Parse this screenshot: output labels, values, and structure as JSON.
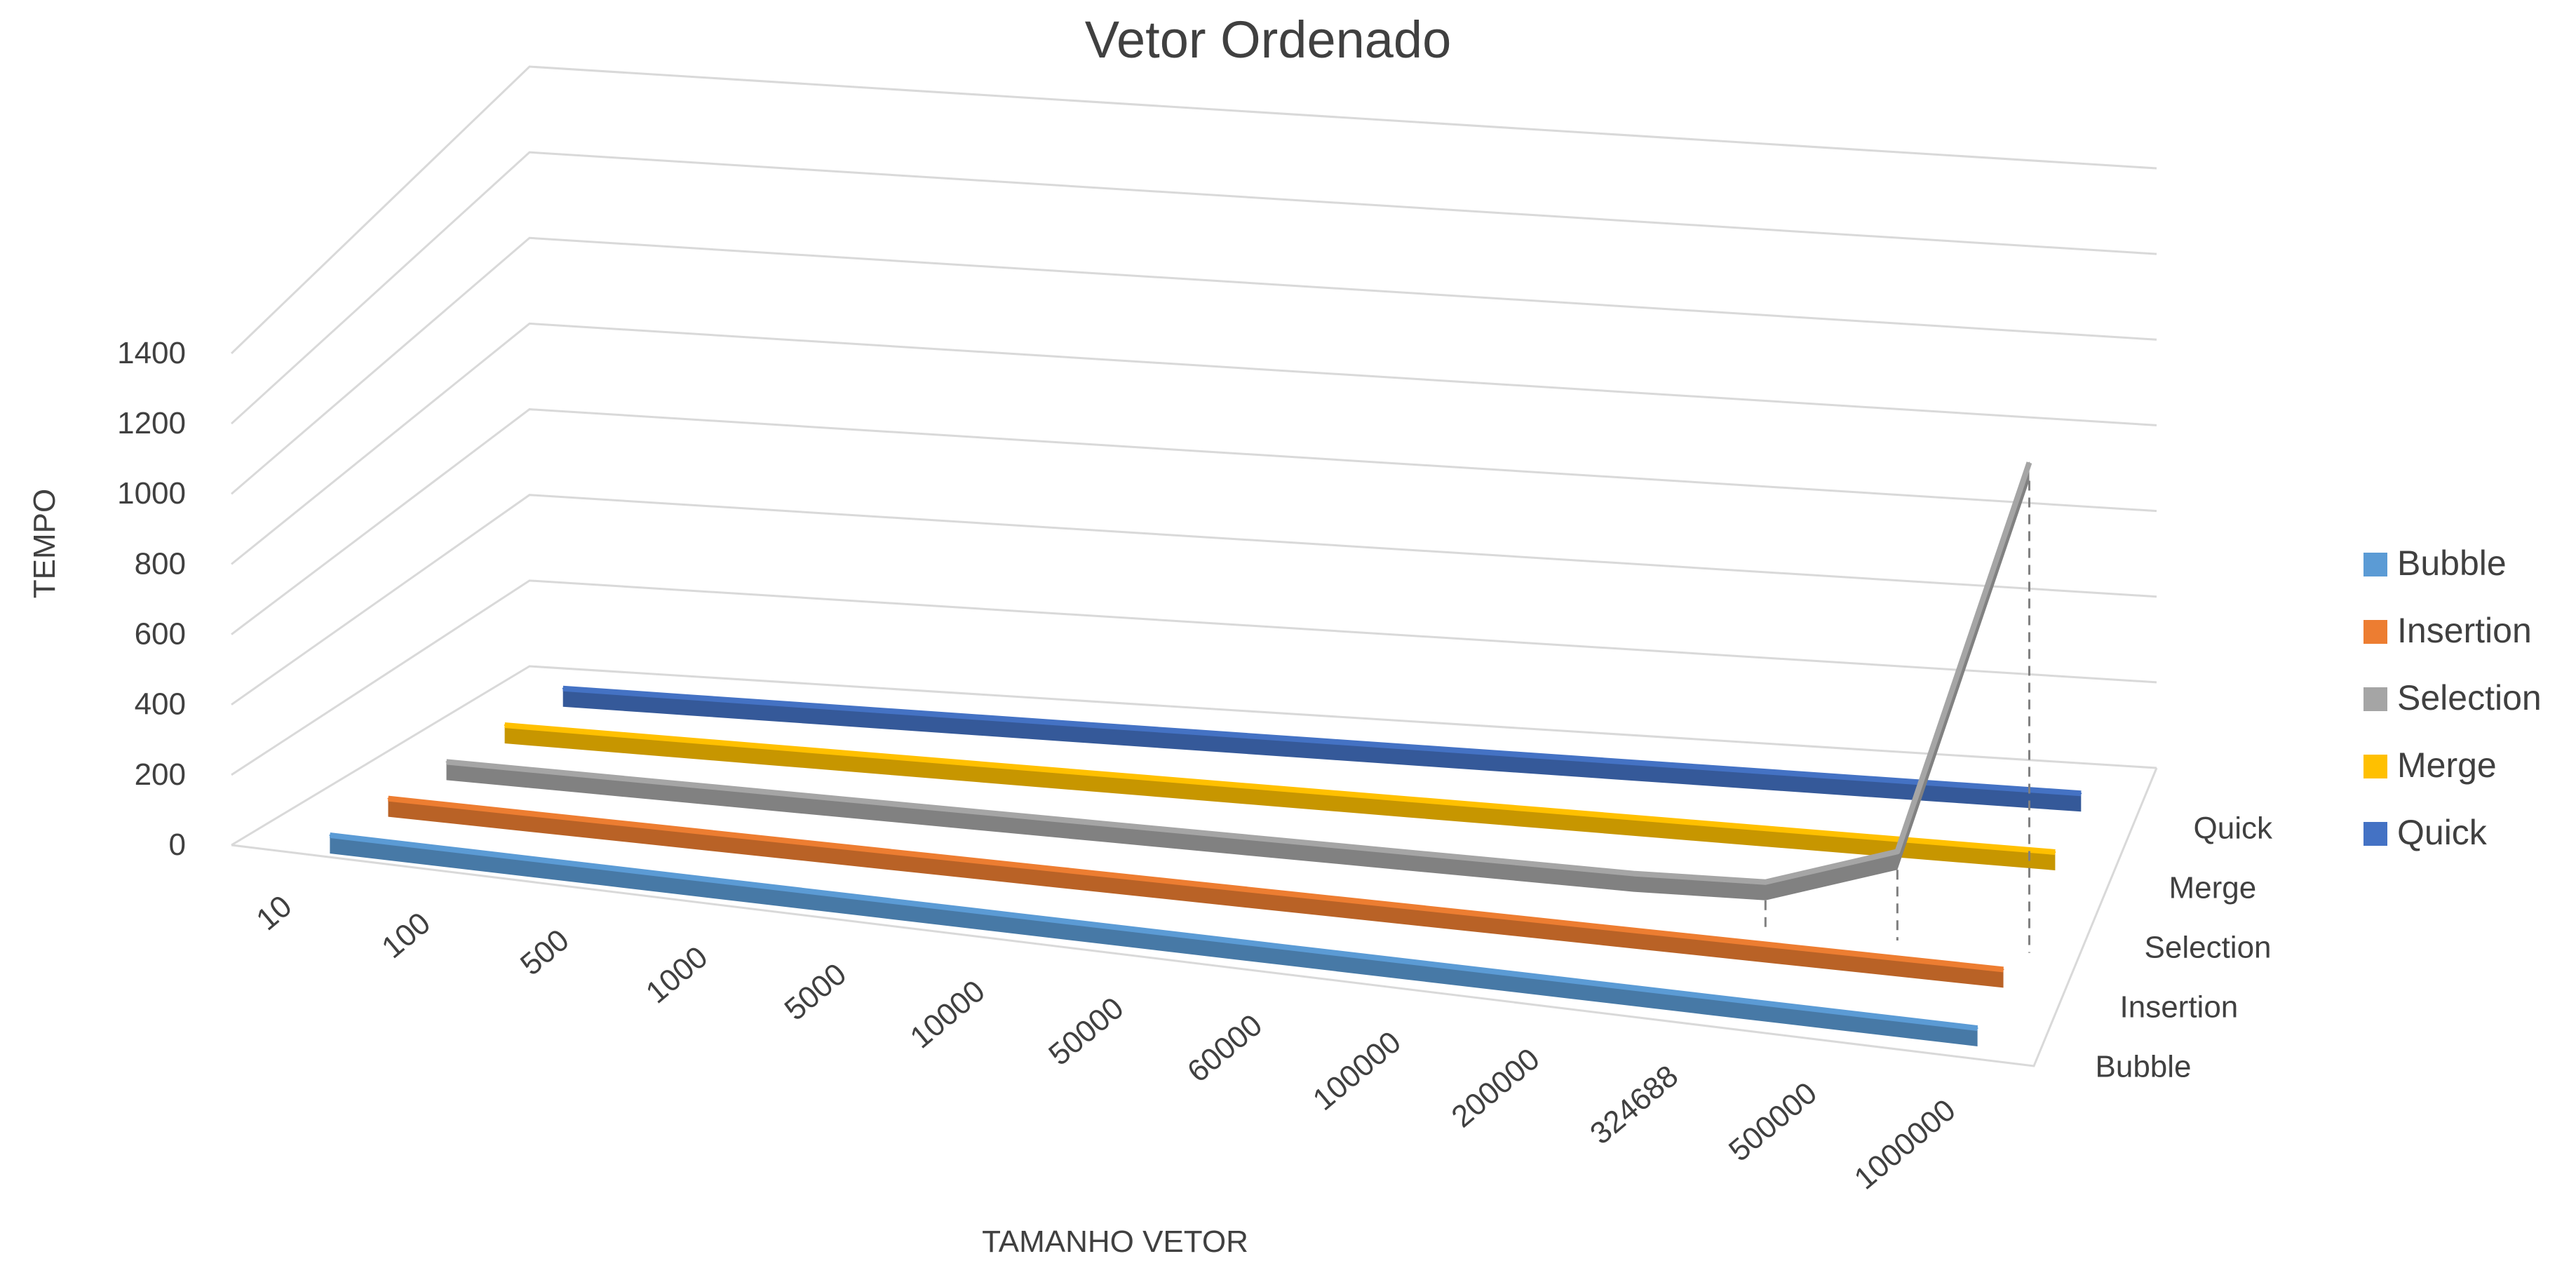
{
  "chart_data": {
    "type": "line",
    "subtype": "3d-line",
    "title": "Vetor Ordenado",
    "xlabel": "TAMANHO VETOR",
    "ylabel": "TEMPO",
    "categories": [
      "10",
      "100",
      "500",
      "1000",
      "5000",
      "10000",
      "50000",
      "60000",
      "100000",
      "200000",
      "324688",
      "500000",
      "1000000"
    ],
    "ylim": [
      0,
      1400
    ],
    "yticks": [
      0,
      200,
      400,
      600,
      800,
      1000,
      1200,
      1400
    ],
    "grid": true,
    "legend_position": "right",
    "series": [
      {
        "name": "Bubble",
        "color": "#5B9BD5",
        "values": [
          0,
          0,
          0,
          0,
          0,
          0,
          0,
          0,
          0,
          0,
          0,
          0,
          0
        ]
      },
      {
        "name": "Insertion",
        "color": "#ED7D31",
        "values": [
          0,
          0,
          0,
          0,
          0,
          0,
          0,
          0,
          0,
          0,
          0,
          0,
          0
        ]
      },
      {
        "name": "Selection",
        "color": "#A5A5A5",
        "values": [
          0,
          0,
          0,
          0,
          0,
          0,
          0,
          0,
          0,
          0,
          10,
          120,
          1150
        ]
      },
      {
        "name": "Merge",
        "color": "#FFC000",
        "values": [
          0,
          0,
          0,
          0,
          0,
          0,
          0,
          0,
          0,
          0,
          0,
          0,
          0
        ]
      },
      {
        "name": "Quick",
        "color": "#4472C4",
        "values": [
          0,
          0,
          0,
          0,
          0,
          0,
          0,
          0,
          0,
          0,
          0,
          0,
          0
        ]
      }
    ]
  }
}
